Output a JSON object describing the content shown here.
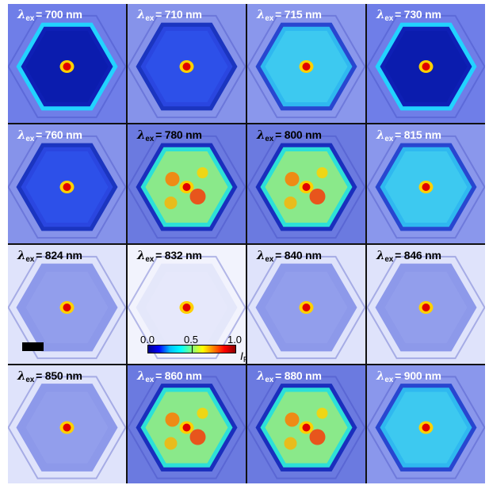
{
  "panels": [
    {
      "label": "700 nm",
      "theme": "ring",
      "labelColor": "light"
    },
    {
      "label": "710 nm",
      "theme": "mid",
      "labelColor": "light"
    },
    {
      "label": "715 nm",
      "theme": "bright",
      "labelColor": "light"
    },
    {
      "label": "730 nm",
      "theme": "ring",
      "labelColor": "light"
    },
    {
      "label": "760 nm",
      "theme": "mid",
      "labelColor": "light"
    },
    {
      "label": "780 nm",
      "theme": "hot",
      "labelColor": "dark"
    },
    {
      "label": "800 nm",
      "theme": "hot",
      "labelColor": "dark"
    },
    {
      "label": "815 nm",
      "theme": "bright",
      "labelColor": "light"
    },
    {
      "label": "824 nm",
      "theme": "faint",
      "labelColor": "dark"
    },
    {
      "label": "832 nm",
      "theme": "veryfaint",
      "labelColor": "dark"
    },
    {
      "label": "840 nm",
      "theme": "faint",
      "labelColor": "dark"
    },
    {
      "label": "846 nm",
      "theme": "faint",
      "labelColor": "dark"
    },
    {
      "label": "850 nm",
      "theme": "faint",
      "labelColor": "dark"
    },
    {
      "label": "860 nm",
      "theme": "hot",
      "labelColor": "light"
    },
    {
      "label": "880 nm",
      "theme": "hot",
      "labelColor": "light"
    },
    {
      "label": "900 nm",
      "theme": "bright",
      "labelColor": "light"
    }
  ],
  "label_symbol": "λ",
  "label_sub": "ex",
  "label_eq": "= ",
  "colorbar": {
    "ticks": [
      "0.0",
      "0.5",
      "1.0"
    ],
    "unit": "I",
    "unit_sub": "PL"
  },
  "colors": {
    "hot": "#ff2a00",
    "cyan": "#00d8ff",
    "blue": "#1f3fff",
    "pale": "#c8d0ff"
  }
}
